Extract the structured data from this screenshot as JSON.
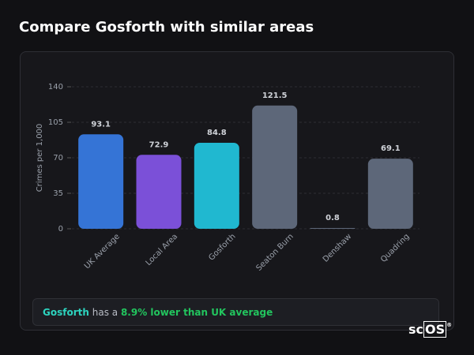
{
  "header": {
    "title": "Compare Gosforth with similar areas"
  },
  "chart_data": {
    "type": "bar",
    "ylabel": "Crimes per 1,000",
    "categories": [
      "UK Average",
      "Local Area",
      "Gosforth",
      "Seaton Burn",
      "Denshaw",
      "Quadring"
    ],
    "values": [
      93.1,
      72.9,
      84.8,
      121.5,
      0.8,
      69.1
    ],
    "colors": [
      "#3574d6",
      "#7b50d8",
      "#20b8d0",
      "#5d6779",
      "#5d6779",
      "#5d6779"
    ],
    "ylim": [
      0,
      140
    ],
    "yticks": [
      0,
      35,
      70,
      105,
      140
    ],
    "grid": true
  },
  "summary": {
    "area": "Gosforth",
    "text": "has a",
    "highlight": "8.9% lower than UK average"
  },
  "logo": {
    "text": "sc",
    "boxed": "OS",
    "mark": "®"
  }
}
